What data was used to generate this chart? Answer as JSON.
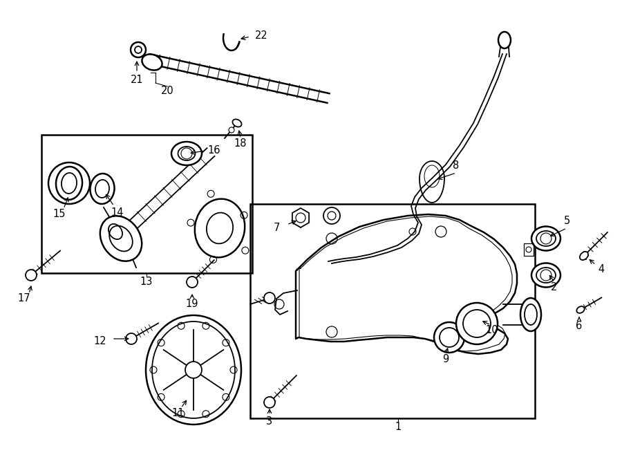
{
  "bg_color": "#ffffff",
  "line_color": "#000000",
  "fig_width": 9.0,
  "fig_height": 6.61,
  "dpi": 100,
  "fontsize": 10.5
}
